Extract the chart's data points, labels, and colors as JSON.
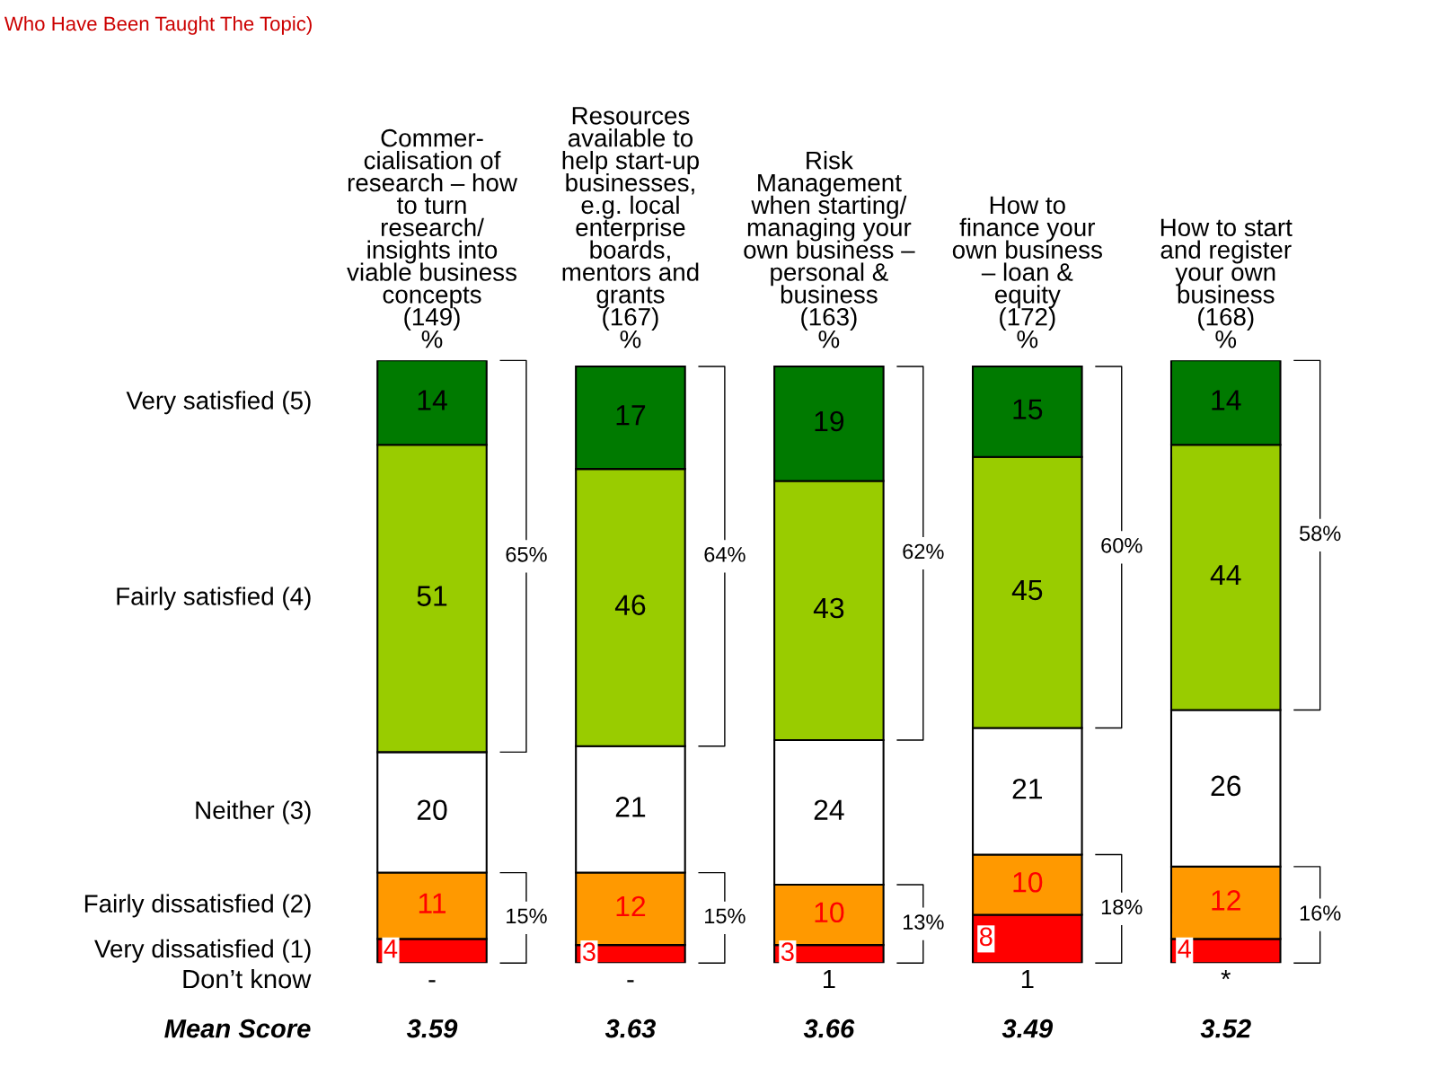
{
  "chart_data": {
    "type": "bar",
    "stacked": true,
    "title": "Who Have Been Taught The Topic)",
    "categories": [
      "Commer-\ncialisation of\nresearch – how\nto turn\nresearch/\ninsights into\nviable business\nconcepts\n(149)\n%",
      "Resources\navailable to\nhelp start-up\nbusinesses,\ne.g. local\nenterprise\nboards,\nmentors and\ngrants\n(167)\n%",
      "Risk\nManagement\nwhen starting/\nmanaging your\nown business –\npersonal &\nbusiness\n(163)\n%",
      "How to\nfinance your\nown business\n– loan &\nequity\n(172)\n%",
      "How to start\nand register\nyour own\nbusiness\n(168)\n%"
    ],
    "series": [
      {
        "name": "Very dissatisfied (1)",
        "color": "#ff0000",
        "values": [
          4,
          3,
          3,
          8,
          4
        ]
      },
      {
        "name": "Fairly dissatisfied (2)",
        "color": "#ff9900",
        "values": [
          11,
          12,
          10,
          10,
          12
        ]
      },
      {
        "name": "Neither (3)",
        "color": "#ffffff",
        "values": [
          20,
          21,
          24,
          21,
          26
        ]
      },
      {
        "name": "Fairly satisfied (4)",
        "color": "#99cc00",
        "values": [
          51,
          46,
          43,
          45,
          44
        ]
      },
      {
        "name": "Very satisfied (5)",
        "color": "#007a00",
        "values": [
          14,
          17,
          19,
          15,
          14
        ]
      }
    ],
    "data_labels": true,
    "tick_labels": "x",
    "grid": false,
    "legend": false,
    "annotations": [
      "65%",
      "15%",
      "64%",
      "15%",
      "62%",
      "13%",
      "60%",
      "18%",
      "58%",
      "16%",
      "Don’t know",
      "-",
      "-",
      "1",
      "1",
      "*",
      "Mean Score",
      "3.59",
      "3.63",
      "3.66",
      "3.49",
      "3.52"
    ]
  }
}
